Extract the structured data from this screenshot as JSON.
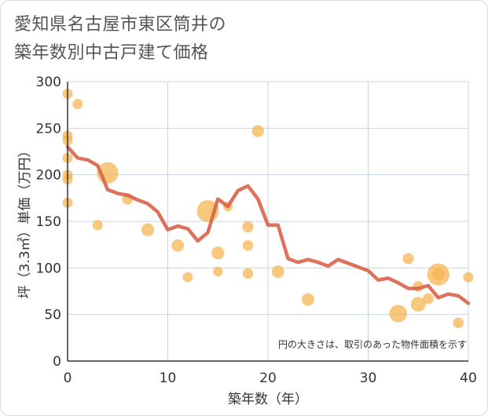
{
  "title": {
    "line1": "愛知県名古屋市東区筒井の",
    "line2": "築年数別中古戸建て価格"
  },
  "chart_data": {
    "type": "scatter",
    "title": "愛知県名古屋市東区筒井の築年数別中古戸建て価格",
    "xlabel": "築年数（年）",
    "ylabel": "坪（3.3㎡）単価（万円）",
    "xlim": [
      0,
      40
    ],
    "ylim": [
      0,
      300
    ],
    "xticks": [
      0,
      10,
      20,
      30,
      40
    ],
    "yticks": [
      0,
      50,
      100,
      150,
      200,
      250,
      300
    ],
    "grid": true,
    "note": "円の大きさは、取引のあった物件面積を示す",
    "colors": {
      "bubble": "#f5b34d",
      "line": "#d9634a",
      "grid": "#c8d4df",
      "axis": "#333333"
    },
    "bubbles": [
      {
        "x": 0,
        "y": 287,
        "s": 1
      },
      {
        "x": 1,
        "y": 276,
        "s": 1
      },
      {
        "x": 0,
        "y": 242,
        "s": 1
      },
      {
        "x": 0,
        "y": 237,
        "s": 1
      },
      {
        "x": 0,
        "y": 218,
        "s": 1
      },
      {
        "x": 0,
        "y": 200,
        "s": 1
      },
      {
        "x": 0,
        "y": 195,
        "s": 1
      },
      {
        "x": 0,
        "y": 170,
        "s": 1
      },
      {
        "x": 3,
        "y": 146,
        "s": 1
      },
      {
        "x": 4,
        "y": 202,
        "s": 4
      },
      {
        "x": 6,
        "y": 174,
        "s": 1.2
      },
      {
        "x": 8,
        "y": 141,
        "s": 1.6
      },
      {
        "x": 11,
        "y": 124,
        "s": 1.5
      },
      {
        "x": 12,
        "y": 90,
        "s": 1
      },
      {
        "x": 14,
        "y": 161,
        "s": 4.2
      },
      {
        "x": 15,
        "y": 116,
        "s": 1.6
      },
      {
        "x": 15,
        "y": 96,
        "s": 0.9
      },
      {
        "x": 16,
        "y": 166,
        "s": 0.9
      },
      {
        "x": 18,
        "y": 144,
        "s": 1.2
      },
      {
        "x": 18,
        "y": 124,
        "s": 1.1
      },
      {
        "x": 18,
        "y": 94,
        "s": 1.1
      },
      {
        "x": 19,
        "y": 247,
        "s": 1.4
      },
      {
        "x": 21,
        "y": 96,
        "s": 1.5
      },
      {
        "x": 24,
        "y": 66,
        "s": 1.5
      },
      {
        "x": 33,
        "y": 51,
        "s": 3
      },
      {
        "x": 34,
        "y": 110,
        "s": 1.2
      },
      {
        "x": 35,
        "y": 80,
        "s": 1.1
      },
      {
        "x": 35,
        "y": 61,
        "s": 2.1
      },
      {
        "x": 36,
        "y": 67,
        "s": 1.1
      },
      {
        "x": 37,
        "y": 93,
        "s": 4.3
      },
      {
        "x": 37,
        "y": 93,
        "s": 1.5
      },
      {
        "x": 39,
        "y": 41,
        "s": 1.1
      },
      {
        "x": 40,
        "y": 90,
        "s": 1
      }
    ],
    "series": [
      {
        "name": "average",
        "x": [
          0,
          1,
          2,
          3,
          4,
          5,
          6,
          7,
          8,
          9,
          10,
          11,
          12,
          13,
          14,
          15,
          16,
          17,
          18,
          19,
          20,
          21,
          22,
          23,
          24,
          25,
          26,
          27,
          28,
          29,
          30,
          31,
          32,
          33,
          34,
          35,
          36,
          37,
          38,
          39,
          40
        ],
        "y": [
          230,
          218,
          216,
          210,
          184,
          180,
          178,
          173,
          169,
          160,
          141,
          145,
          142,
          129,
          138,
          174,
          166,
          183,
          188,
          174,
          146,
          146,
          110,
          106,
          109,
          106,
          102,
          109,
          105,
          101,
          97,
          87,
          89,
          84,
          78,
          78,
          81,
          68,
          72,
          70,
          62
        ]
      }
    ]
  }
}
